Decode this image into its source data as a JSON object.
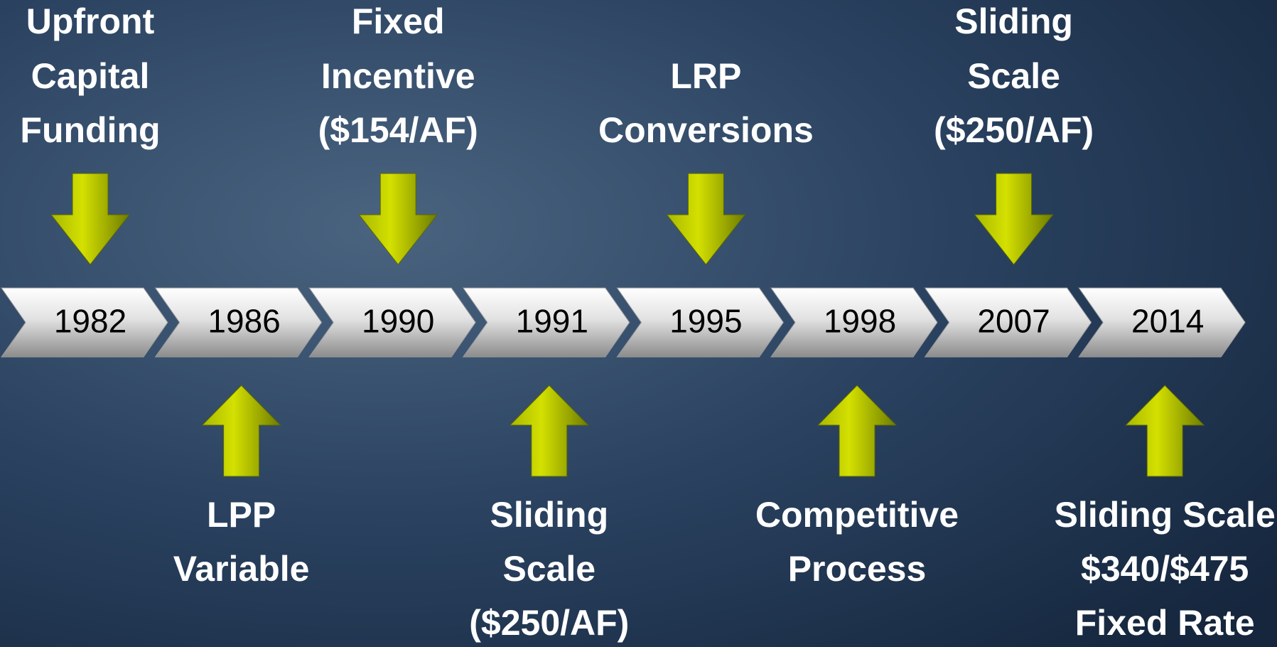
{
  "events": [
    {
      "year": "1982",
      "label": [
        "Upfront",
        "Capital",
        "Funding"
      ]
    },
    {
      "year": "1986",
      "label": [
        "LPP",
        "Variable"
      ]
    },
    {
      "year": "1990",
      "label": [
        "Fixed",
        "Incentive",
        "($154/AF)"
      ]
    },
    {
      "year": "1991",
      "label": [
        "Sliding",
        "Scale",
        "($250/AF)"
      ]
    },
    {
      "year": "1995",
      "label": [
        "LRP",
        "Conversions"
      ]
    },
    {
      "year": "1998",
      "label": [
        "Competitive",
        "Process"
      ]
    },
    {
      "year": "2007",
      "label": [
        "Sliding",
        "Scale",
        "($250/AF)"
      ]
    },
    {
      "year": "2014",
      "label": [
        "Sliding Scale",
        "$340/$475",
        "Fixed Rate"
      ]
    }
  ]
}
